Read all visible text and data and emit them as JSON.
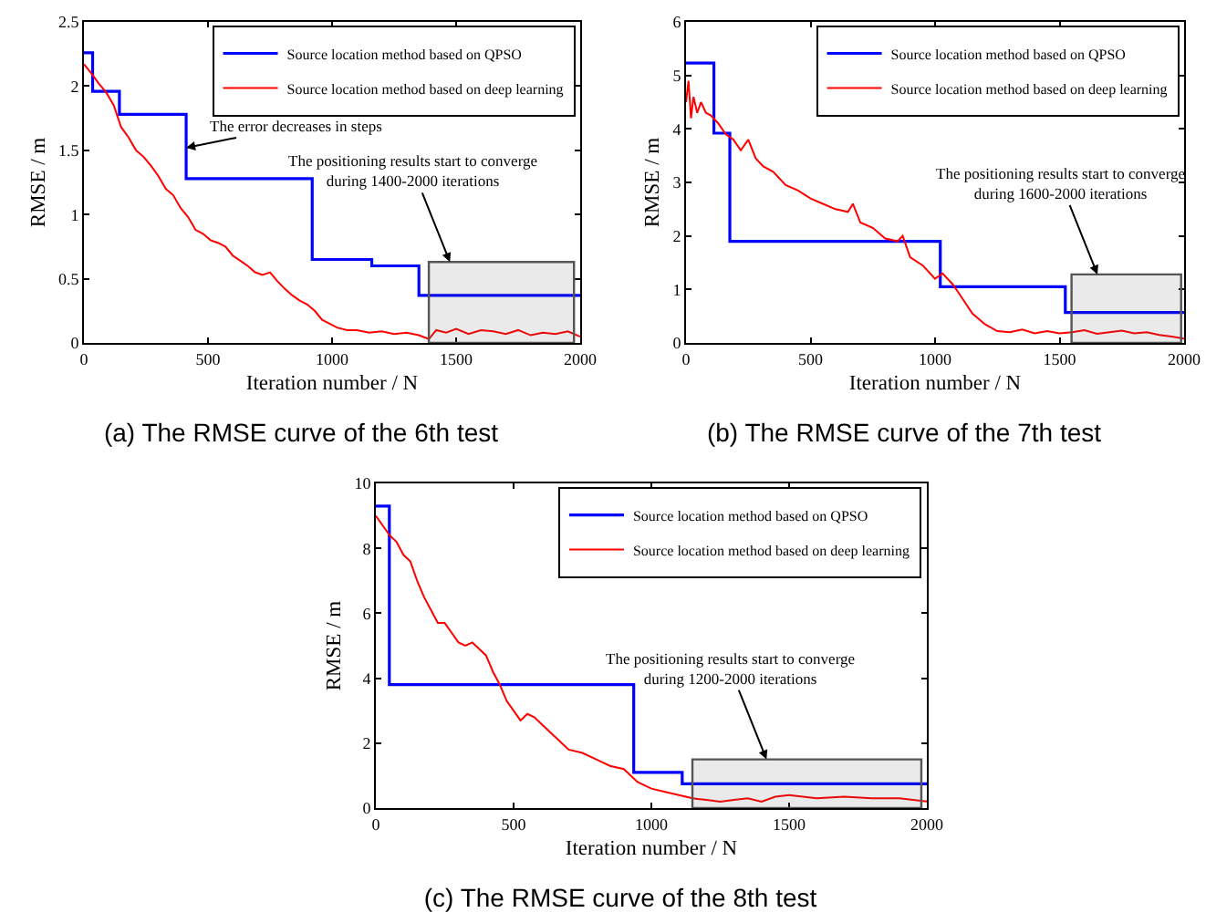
{
  "chart_data": [
    {
      "type": "line",
      "title": "(a) The RMSE curve of the 6th test",
      "xlabel": "Iteration number / N",
      "ylabel": "RMSE / m",
      "xlim": [
        0,
        2000
      ],
      "xticks": [
        0,
        500,
        1000,
        1500,
        2000
      ],
      "ylim": [
        0,
        2.5
      ],
      "yticks": [
        0,
        0.5,
        1,
        1.5,
        2,
        2.5
      ],
      "grid": false,
      "legend": "top right",
      "series": [
        {
          "name": "Source location method based on QPSO",
          "color": "#0000ff",
          "type": "step",
          "x": [
            0,
            35,
            143,
            412,
            920,
            1160,
            1350,
            2000
          ],
          "values": [
            2.26,
            1.96,
            1.78,
            1.28,
            0.65,
            0.6,
            0.37,
            0.37
          ]
        },
        {
          "name": "Source location method based on deep learning",
          "color": "#ff0000",
          "x": [
            0,
            30,
            60,
            90,
            120,
            150,
            180,
            210,
            240,
            270,
            300,
            330,
            360,
            390,
            420,
            450,
            480,
            510,
            540,
            570,
            600,
            630,
            660,
            690,
            720,
            750,
            780,
            810,
            840,
            870,
            900,
            930,
            960,
            990,
            1020,
            1060,
            1100,
            1150,
            1200,
            1250,
            1300,
            1350,
            1390,
            1420,
            1460,
            1500,
            1550,
            1600,
            1650,
            1700,
            1750,
            1800,
            1850,
            1900,
            1950,
            2000
          ],
          "values": [
            2.17,
            2.1,
            2.02,
            1.95,
            1.85,
            1.68,
            1.6,
            1.5,
            1.45,
            1.38,
            1.3,
            1.2,
            1.15,
            1.05,
            0.98,
            0.88,
            0.85,
            0.8,
            0.78,
            0.75,
            0.68,
            0.64,
            0.6,
            0.55,
            0.53,
            0.55,
            0.48,
            0.42,
            0.37,
            0.33,
            0.3,
            0.25,
            0.18,
            0.15,
            0.12,
            0.1,
            0.1,
            0.08,
            0.09,
            0.07,
            0.08,
            0.06,
            0.03,
            0.1,
            0.08,
            0.11,
            0.07,
            0.1,
            0.09,
            0.07,
            0.1,
            0.06,
            0.08,
            0.07,
            0.09,
            0.05
          ]
        }
      ],
      "annotations": [
        {
          "text": "The error decreases in steps",
          "x": 412,
          "y": 1.52
        },
        {
          "text": "The positioning results start to converge\nduring 1400-2000 iterations",
          "x": 1475,
          "y": 0.63
        }
      ],
      "bands": [
        {
          "axis": "x",
          "from": 1390,
          "to": 1975,
          "color": "#555555"
        }
      ]
    },
    {
      "type": "line",
      "title": "(b) The RMSE curve of the 7th test",
      "xlabel": "Iteration number / N",
      "ylabel": "RMSE / m",
      "xlim": [
        0,
        2000
      ],
      "xticks": [
        0,
        500,
        1000,
        1500,
        2000
      ],
      "ylim": [
        0,
        6
      ],
      "yticks": [
        0,
        1,
        2,
        3,
        4,
        5,
        6
      ],
      "grid": false,
      "legend": "top right",
      "series": [
        {
          "name": "Source location method based on QPSO",
          "color": "#0000ff",
          "type": "step",
          "x": [
            0,
            112,
            176,
            1021,
            1523,
            2000
          ],
          "values": [
            5.23,
            3.92,
            1.9,
            1.05,
            0.57,
            0.57
          ]
        },
        {
          "name": "Source location method based on deep learning",
          "color": "#ff0000",
          "x": [
            0,
            10,
            20,
            30,
            45,
            60,
            80,
            100,
            130,
            160,
            190,
            220,
            250,
            280,
            310,
            350,
            400,
            450,
            500,
            550,
            600,
            650,
            670,
            700,
            750,
            800,
            850,
            870,
            900,
            950,
            1000,
            1030,
            1070,
            1100,
            1150,
            1200,
            1250,
            1300,
            1350,
            1400,
            1450,
            1500,
            1550,
            1600,
            1650,
            1700,
            1750,
            1800,
            1850,
            1900,
            1950,
            2000
          ],
          "values": [
            4.5,
            4.9,
            4.2,
            4.6,
            4.3,
            4.5,
            4.3,
            4.25,
            4.1,
            3.9,
            3.8,
            3.6,
            3.8,
            3.45,
            3.3,
            3.2,
            2.95,
            2.85,
            2.7,
            2.6,
            2.5,
            2.45,
            2.6,
            2.25,
            2.15,
            1.95,
            1.9,
            2.0,
            1.6,
            1.45,
            1.2,
            1.3,
            1.1,
            0.9,
            0.55,
            0.35,
            0.22,
            0.2,
            0.25,
            0.18,
            0.22,
            0.18,
            0.2,
            0.24,
            0.17,
            0.2,
            0.23,
            0.18,
            0.2,
            0.15,
            0.12,
            0.08
          ]
        }
      ],
      "annotations": [
        {
          "text": "The positioning results start to converge\nduring 1600-2000 iterations",
          "x": 1652,
          "y": 1.28
        }
      ],
      "bands": [
        {
          "axis": "x",
          "from": 1548,
          "to": 1988,
          "color": "#555555"
        }
      ]
    },
    {
      "type": "line",
      "title": "(c) The RMSE curve of the 8th test",
      "xlabel": "Iteration number / N",
      "ylabel": "RMSE / m",
      "xlim": [
        0,
        2000
      ],
      "xticks": [
        0,
        500,
        1000,
        1500,
        2000
      ],
      "ylim": [
        0,
        10
      ],
      "yticks": [
        0,
        2,
        4,
        6,
        8,
        10
      ],
      "grid": false,
      "legend": "top right",
      "series": [
        {
          "name": "Source location method based on QPSO",
          "color": "#0000ff",
          "type": "step",
          "x": [
            0,
            49,
            936,
            1112,
            2000
          ],
          "values": [
            9.3,
            3.8,
            1.1,
            0.75,
            0.75
          ]
        },
        {
          "name": "Source location method based on deep learning",
          "color": "#ff0000",
          "x": [
            0,
            25,
            50,
            75,
            100,
            125,
            150,
            175,
            200,
            225,
            250,
            275,
            300,
            325,
            350,
            375,
            400,
            425,
            450,
            475,
            500,
            525,
            550,
            575,
            600,
            650,
            700,
            750,
            800,
            850,
            900,
            950,
            1000,
            1050,
            1100,
            1150,
            1200,
            1250,
            1300,
            1350,
            1400,
            1450,
            1500,
            1600,
            1700,
            1800,
            1900,
            2000
          ],
          "values": [
            9.0,
            8.7,
            8.4,
            8.2,
            7.8,
            7.6,
            7.0,
            6.5,
            6.1,
            5.7,
            5.7,
            5.4,
            5.1,
            5.0,
            5.1,
            4.9,
            4.7,
            4.2,
            3.8,
            3.3,
            3.0,
            2.7,
            2.9,
            2.8,
            2.6,
            2.2,
            1.8,
            1.7,
            1.5,
            1.3,
            1.2,
            0.8,
            0.6,
            0.5,
            0.4,
            0.3,
            0.25,
            0.2,
            0.25,
            0.3,
            0.2,
            0.35,
            0.4,
            0.3,
            0.35,
            0.3,
            0.3,
            0.2
          ]
        }
      ],
      "annotations": [
        {
          "text": "The positioning results start to converge\nduring 1200-2000 iterations",
          "x": 1418,
          "y": 1.5
        }
      ],
      "bands": [
        {
          "axis": "x",
          "from": 1149,
          "to": 1980,
          "color": "#555555"
        }
      ]
    }
  ]
}
